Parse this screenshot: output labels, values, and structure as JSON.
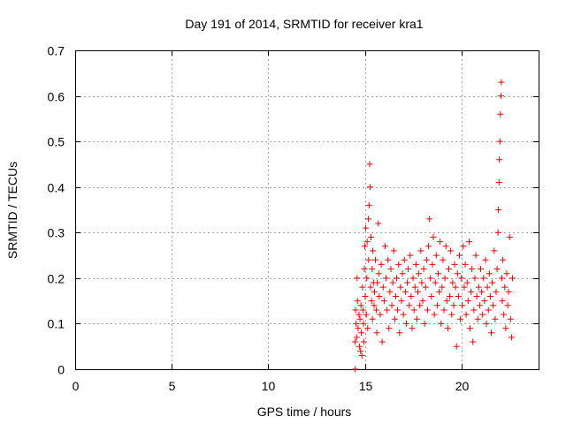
{
  "colors": {
    "series": "#ff0000",
    "axis": "#000000",
    "grid": "#a0a0a0",
    "background": "#ffffff"
  },
  "chart_data": {
    "type": "scatter",
    "title": "Day 191 of 2014, SRMTID for receiver kra1",
    "xlabel": "GPS time / hours",
    "ylabel": "SRMTID / TECUs",
    "xlim": [
      0,
      24
    ],
    "ylim": [
      0,
      0.7
    ],
    "xticks": [
      0,
      5,
      10,
      15,
      20
    ],
    "yticks": [
      0,
      0.1,
      0.2,
      0.3,
      0.4,
      0.5,
      0.6,
      0.7
    ],
    "ytick_labels": [
      "0",
      "0.1",
      "0.2",
      "0.3",
      "0.4",
      "0.5",
      "0.6",
      "0.7"
    ],
    "grid": true,
    "marker": "plus",
    "series": [
      {
        "name": "kra1",
        "points": [
          [
            14.5,
            0.0
          ],
          [
            14.5,
            0.06
          ],
          [
            14.52,
            0.13
          ],
          [
            14.55,
            0.1
          ],
          [
            14.58,
            0.07
          ],
          [
            14.6,
            0.2
          ],
          [
            14.62,
            0.15
          ],
          [
            14.65,
            0.09
          ],
          [
            14.7,
            0.12
          ],
          [
            14.72,
            0.05
          ],
          [
            14.75,
            0.11
          ],
          [
            14.78,
            0.04
          ],
          [
            14.8,
            0.14
          ],
          [
            14.82,
            0.08
          ],
          [
            14.85,
            0.03
          ],
          [
            14.88,
            0.18
          ],
          [
            14.9,
            0.13
          ],
          [
            14.93,
            0.1
          ],
          [
            14.95,
            0.06
          ],
          [
            14.98,
            0.22
          ],
          [
            15.0,
            0.27
          ],
          [
            15.02,
            0.16
          ],
          [
            15.05,
            0.31
          ],
          [
            15.08,
            0.12
          ],
          [
            15.1,
            0.2
          ],
          [
            15.12,
            0.28
          ],
          [
            15.15,
            0.09
          ],
          [
            15.18,
            0.33
          ],
          [
            15.2,
            0.24
          ],
          [
            15.22,
            0.36
          ],
          [
            15.25,
            0.45
          ],
          [
            15.27,
            0.4
          ],
          [
            15.3,
            0.18
          ],
          [
            15.32,
            0.29
          ],
          [
            15.35,
            0.15
          ],
          [
            15.38,
            0.22
          ],
          [
            15.4,
            0.11
          ],
          [
            15.42,
            0.26
          ],
          [
            15.45,
            0.19
          ],
          [
            15.48,
            0.14
          ],
          [
            15.5,
            0.17
          ],
          [
            15.55,
            0.24
          ],
          [
            15.6,
            0.13
          ],
          [
            15.62,
            0.08
          ],
          [
            15.65,
            0.19
          ],
          [
            15.7,
            0.32
          ],
          [
            15.72,
            0.21
          ],
          [
            15.75,
            0.16
          ],
          [
            15.8,
            0.12
          ],
          [
            15.85,
            0.23
          ],
          [
            15.9,
            0.06
          ],
          [
            15.95,
            0.18
          ],
          [
            16.0,
            0.15
          ],
          [
            16.05,
            0.27
          ],
          [
            16.1,
            0.2
          ],
          [
            16.15,
            0.13
          ],
          [
            16.2,
            0.24
          ],
          [
            16.25,
            0.09
          ],
          [
            16.3,
            0.17
          ],
          [
            16.35,
            0.22
          ],
          [
            16.4,
            0.14
          ],
          [
            16.45,
            0.19
          ],
          [
            16.5,
            0.26
          ],
          [
            16.55,
            0.11
          ],
          [
            16.6,
            0.16
          ],
          [
            16.65,
            0.2
          ],
          [
            16.7,
            0.13
          ],
          [
            16.75,
            0.23
          ],
          [
            16.8,
            0.08
          ],
          [
            16.85,
            0.18
          ],
          [
            16.9,
            0.15
          ],
          [
            16.95,
            0.21
          ],
          [
            17.0,
            0.12
          ],
          [
            17.05,
            0.24
          ],
          [
            17.1,
            0.17
          ],
          [
            17.15,
            0.1
          ],
          [
            17.2,
            0.19
          ],
          [
            17.25,
            0.22
          ],
          [
            17.3,
            0.14
          ],
          [
            17.35,
            0.25
          ],
          [
            17.4,
            0.16
          ],
          [
            17.45,
            0.09
          ],
          [
            17.5,
            0.2
          ],
          [
            17.55,
            0.13
          ],
          [
            17.6,
            0.18
          ],
          [
            17.65,
            0.23
          ],
          [
            17.7,
            0.11
          ],
          [
            17.75,
            0.17
          ],
          [
            17.8,
            0.21
          ],
          [
            17.85,
            0.14
          ],
          [
            17.9,
            0.26
          ],
          [
            17.95,
            0.19
          ],
          [
            18.0,
            0.15
          ],
          [
            18.05,
            0.22
          ],
          [
            18.1,
            0.1
          ],
          [
            18.15,
            0.18
          ],
          [
            18.2,
            0.24
          ],
          [
            18.25,
            0.13
          ],
          [
            18.3,
            0.27
          ],
          [
            18.35,
            0.33
          ],
          [
            18.4,
            0.2
          ],
          [
            18.45,
            0.16
          ],
          [
            18.5,
            0.23
          ],
          [
            18.55,
            0.29
          ],
          [
            18.6,
            0.12
          ],
          [
            18.65,
            0.19
          ],
          [
            18.7,
            0.25
          ],
          [
            18.75,
            0.14
          ],
          [
            18.8,
            0.21
          ],
          [
            18.85,
            0.17
          ],
          [
            18.9,
            0.28
          ],
          [
            18.95,
            0.1
          ],
          [
            19.0,
            0.18
          ],
          [
            19.05,
            0.24
          ],
          [
            19.1,
            0.13
          ],
          [
            19.15,
            0.2
          ],
          [
            19.2,
            0.27
          ],
          [
            19.25,
            0.15
          ],
          [
            19.3,
            0.09
          ],
          [
            19.35,
            0.22
          ],
          [
            19.4,
            0.16
          ],
          [
            19.45,
            0.26
          ],
          [
            19.5,
            0.12
          ],
          [
            19.55,
            0.19
          ],
          [
            19.6,
            0.14
          ],
          [
            19.65,
            0.23
          ],
          [
            19.7,
            0.18
          ],
          [
            19.75,
            0.05
          ],
          [
            19.8,
            0.21
          ],
          [
            19.85,
            0.16
          ],
          [
            19.9,
            0.25
          ],
          [
            19.95,
            0.11
          ],
          [
            20.0,
            0.2
          ],
          [
            20.05,
            0.14
          ],
          [
            20.1,
            0.27
          ],
          [
            20.15,
            0.18
          ],
          [
            20.2,
            0.23
          ],
          [
            20.25,
            0.12
          ],
          [
            20.3,
            0.19
          ],
          [
            20.35,
            0.15
          ],
          [
            20.4,
            0.28
          ],
          [
            20.45,
            0.09
          ],
          [
            20.5,
            0.17
          ],
          [
            20.55,
            0.22
          ],
          [
            20.6,
            0.06
          ],
          [
            20.65,
            0.13
          ],
          [
            20.7,
            0.2
          ],
          [
            20.75,
            0.25
          ],
          [
            20.8,
            0.16
          ],
          [
            20.85,
            0.11
          ],
          [
            20.9,
            0.18
          ],
          [
            20.95,
            0.14
          ],
          [
            21.0,
            0.22
          ],
          [
            21.05,
            0.17
          ],
          [
            21.1,
            0.12
          ],
          [
            21.15,
            0.2
          ],
          [
            21.2,
            0.15
          ],
          [
            21.25,
            0.24
          ],
          [
            21.3,
            0.1
          ],
          [
            21.35,
            0.18
          ],
          [
            21.4,
            0.13
          ],
          [
            21.45,
            0.21
          ],
          [
            21.5,
            0.16
          ],
          [
            21.55,
            0.08
          ],
          [
            21.6,
            0.19
          ],
          [
            21.65,
            0.14
          ],
          [
            21.7,
            0.26
          ],
          [
            21.75,
            0.11
          ],
          [
            21.8,
            0.17
          ],
          [
            21.85,
            0.22
          ],
          [
            21.9,
            0.3
          ],
          [
            21.92,
            0.35
          ],
          [
            21.95,
            0.41
          ],
          [
            21.97,
            0.46
          ],
          [
            22.0,
            0.5
          ],
          [
            22.02,
            0.56
          ],
          [
            22.05,
            0.6
          ],
          [
            22.07,
            0.63
          ],
          [
            22.1,
            0.2
          ],
          [
            22.12,
            0.15
          ],
          [
            22.15,
            0.24
          ],
          [
            22.2,
            0.12
          ],
          [
            22.25,
            0.18
          ],
          [
            22.3,
            0.09
          ],
          [
            22.35,
            0.21
          ],
          [
            22.4,
            0.14
          ],
          [
            22.45,
            0.17
          ],
          [
            22.5,
            0.29
          ],
          [
            22.55,
            0.11
          ],
          [
            22.6,
            0.07
          ],
          [
            22.65,
            0.2
          ]
        ]
      }
    ]
  }
}
